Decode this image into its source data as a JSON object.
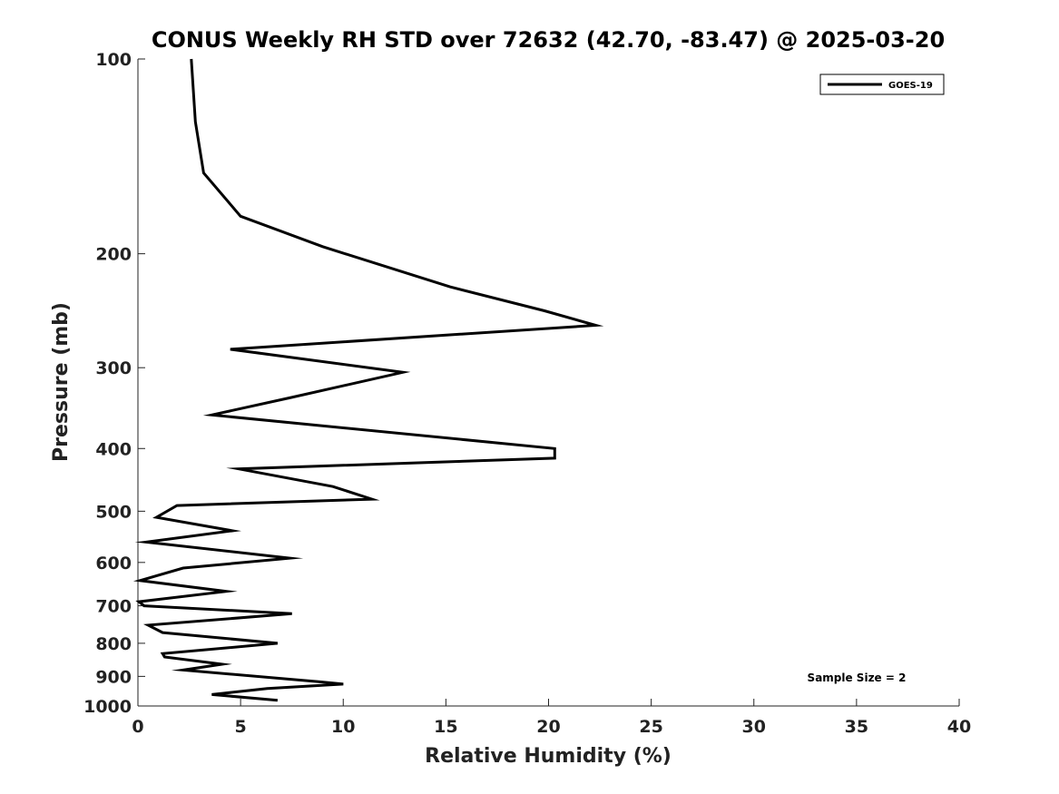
{
  "chart_data": {
    "type": "line",
    "title": "CONUS Weekly RH STD over 72632 (42.70, -83.47) @ 2025-03-20",
    "xlabel": "Relative Humidity (%)",
    "ylabel": "Pressure (mb)",
    "xlim": [
      0,
      40
    ],
    "ylim": [
      100,
      1000
    ],
    "y_scale": "log",
    "y_reversed": true,
    "xticks": [
      0,
      5,
      10,
      15,
      20,
      25,
      30,
      35,
      40
    ],
    "yticks": [
      100,
      200,
      300,
      400,
      500,
      600,
      700,
      800,
      900,
      1000
    ],
    "legend_position": "top-right",
    "annotation": "Sample Size = 2",
    "series": [
      {
        "name": "GOES-19",
        "color": "#000000",
        "x": [
          2.6,
          2.8,
          3.2,
          5.0,
          9.0,
          15.2,
          19.8,
          22.3,
          4.5,
          12.9,
          7.4,
          3.6,
          20.3,
          20.3,
          4.9,
          9.5,
          11.4,
          1.9,
          0.9,
          4.6,
          0.4,
          7.4,
          2.2,
          0.1,
          4.3,
          0.05,
          0.3,
          7.5,
          0.5,
          1.2,
          6.8,
          1.2,
          1.3,
          4.1,
          2.2,
          8.8,
          10.0,
          6.3,
          3.6,
          6.8
        ],
        "y": [
          100,
          125,
          150,
          175,
          195,
          225,
          245,
          258,
          281,
          305,
          334,
          355,
          400,
          414,
          430,
          458,
          479,
          490,
          511,
          536,
          558,
          591,
          612,
          640,
          665,
          690,
          700,
          720,
          750,
          770,
          800,
          830,
          840,
          862,
          880,
          917,
          925,
          940,
          960,
          980
        ]
      }
    ]
  }
}
